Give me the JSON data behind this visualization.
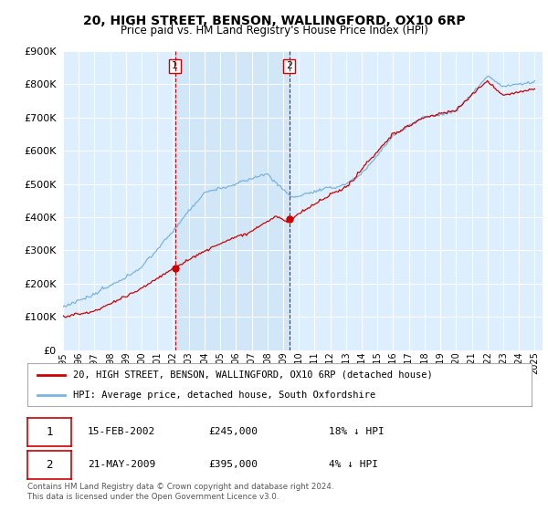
{
  "title": "20, HIGH STREET, BENSON, WALLINGFORD, OX10 6RP",
  "subtitle": "Price paid vs. HM Land Registry's House Price Index (HPI)",
  "ylim": [
    0,
    900000
  ],
  "yticks": [
    0,
    100000,
    200000,
    300000,
    400000,
    500000,
    600000,
    700000,
    800000,
    900000
  ],
  "xlim_start": 1995.3,
  "xlim_end": 2025.5,
  "hpi_color": "#7ab3e0",
  "price_color": "#cc0000",
  "bg_color": "#ddeeff",
  "shade_color": "#cce0f0",
  "purchase1_x": 2002.12,
  "purchase1_y": 245000,
  "purchase2_x": 2009.38,
  "purchase2_y": 395000,
  "legend_label1": "20, HIGH STREET, BENSON, WALLINGFORD, OX10 6RP (detached house)",
  "legend_label2": "HPI: Average price, detached house, South Oxfordshire",
  "table_row1": [
    "1",
    "15-FEB-2002",
    "£245,000",
    "18% ↓ HPI"
  ],
  "table_row2": [
    "2",
    "21-MAY-2009",
    "£395,000",
    "4% ↓ HPI"
  ],
  "footer": "Contains HM Land Registry data © Crown copyright and database right 2024.\nThis data is licensed under the Open Government Licence v3.0.",
  "xticks": [
    1995,
    1996,
    1997,
    1998,
    1999,
    2000,
    2001,
    2002,
    2003,
    2004,
    2005,
    2006,
    2007,
    2008,
    2009,
    2010,
    2011,
    2012,
    2013,
    2014,
    2015,
    2016,
    2017,
    2018,
    2019,
    2020,
    2021,
    2022,
    2023,
    2024,
    2025
  ]
}
